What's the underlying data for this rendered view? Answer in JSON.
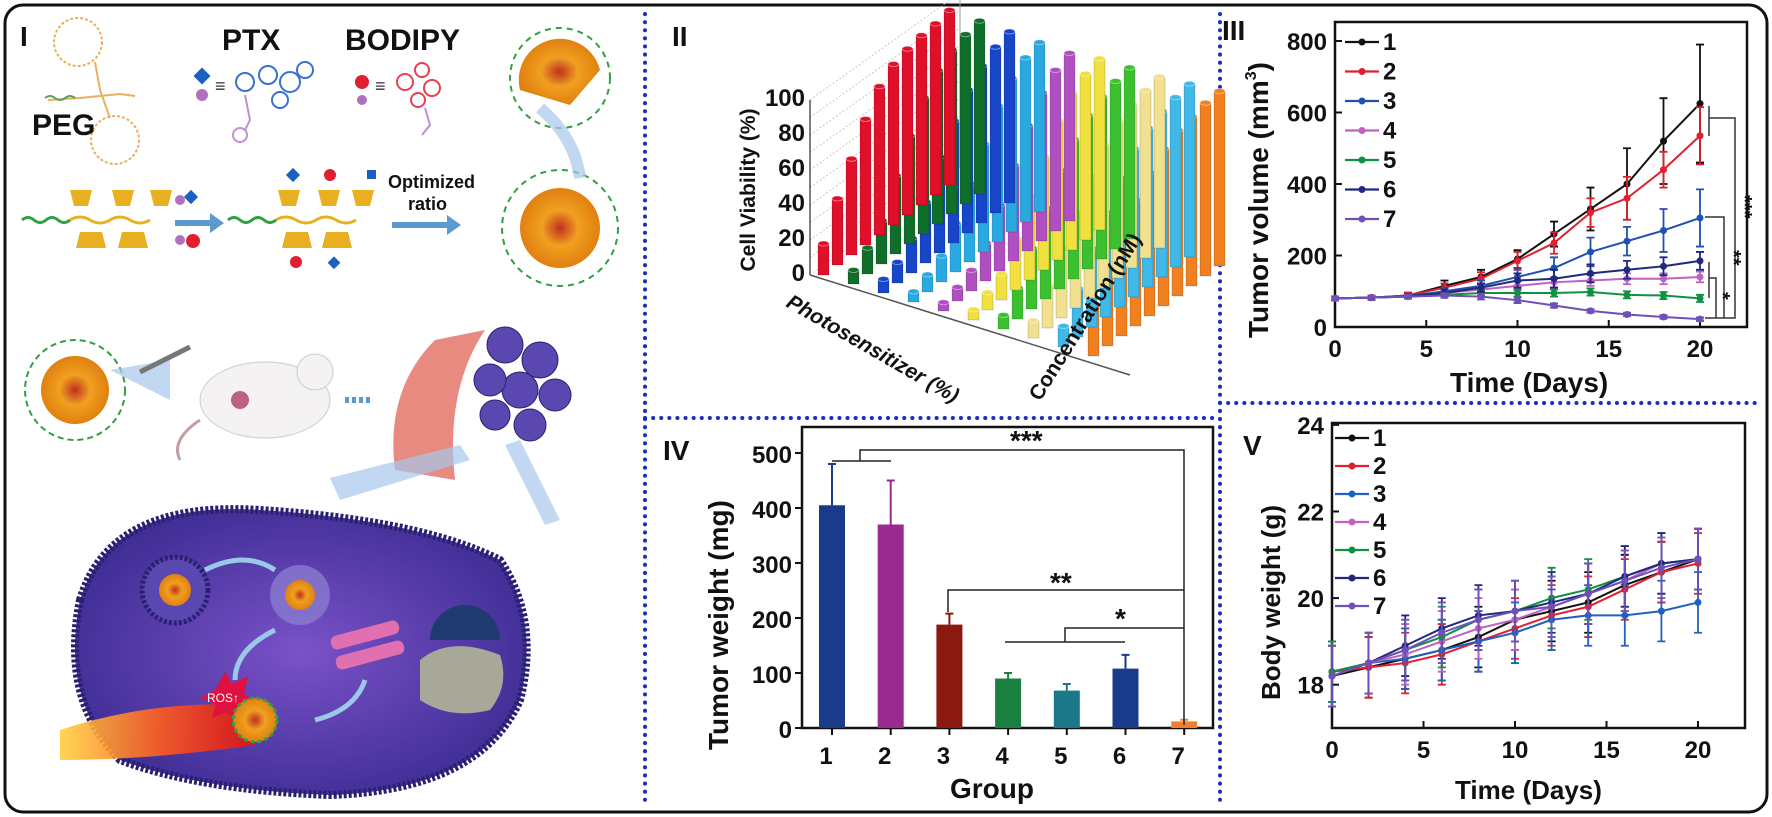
{
  "panels": {
    "p1": "I",
    "p2": "II",
    "p3": "III",
    "p4": "IV",
    "p5": "V"
  },
  "colors": {
    "separator": "#1a2fc0",
    "border": "#111111"
  },
  "illustration": {
    "peg": "PEG",
    "ptx": "PTX",
    "bodipy": "BODIPY",
    "equiv": "≡",
    "optimized_line1": "Optimized",
    "optimized_line2": "ratio",
    "ros": "ROS↑"
  },
  "chart_data": [
    {
      "id": "cell-viability",
      "type": "bar3d",
      "ylabel": "Cell Viability (%)",
      "xlabel": "Photosensitizer (%)",
      "zlabel": "Concentration (nM)",
      "ylim": [
        0,
        100
      ],
      "yticks": [
        "0",
        "20",
        "40",
        "60",
        "80",
        "100"
      ],
      "series_colors": [
        "#e0102a",
        "#0f6e2a",
        "#1846c8",
        "#2aa8e0",
        "#b050c0",
        "#f0e040",
        "#3cc030",
        "#f0e090",
        "#40b8e8",
        "#f08020"
      ],
      "values": [
        [
          18,
          38,
          55,
          72,
          85,
          92,
          95,
          97,
          98,
          100
        ],
        [
          8,
          15,
          25,
          45,
          62,
          78,
          88,
          94,
          97,
          99
        ],
        [
          8,
          12,
          20,
          35,
          55,
          70,
          82,
          90,
          95,
          98
        ],
        [
          6,
          10,
          15,
          28,
          45,
          62,
          78,
          88,
          94,
          97
        ],
        [
          5,
          8,
          12,
          22,
          38,
          55,
          72,
          85,
          92,
          96
        ],
        [
          6,
          10,
          15,
          30,
          48,
          65,
          80,
          90,
          95,
          98
        ],
        [
          8,
          18,
          35,
          52,
          68,
          80,
          88,
          93,
          96,
          98
        ],
        [
          10,
          25,
          40,
          55,
          70,
          82,
          90,
          94,
          96,
          98
        ],
        [
          12,
          28,
          45,
          60,
          74,
          85,
          91,
          95,
          97,
          99
        ],
        [
          30,
          45,
          60,
          72,
          82,
          90,
          95,
          97,
          99,
          100
        ]
      ]
    },
    {
      "id": "tumor-volume",
      "type": "line",
      "xlabel": "Time (Days)",
      "ylabel": "Tumor volume (mm",
      "ylabel_sup": "3",
      "ylabel_end": ")",
      "xlim": [
        0,
        22
      ],
      "ylim": [
        0,
        840
      ],
      "xticks": [
        "0",
        "5",
        "10",
        "15",
        "20"
      ],
      "yticks": [
        "0",
        "200",
        "400",
        "600",
        "800"
      ],
      "legend": "top-left",
      "x": [
        0,
        2,
        4,
        6,
        8,
        10,
        12,
        14,
        16,
        18,
        20
      ],
      "series": [
        {
          "name": "1",
          "color": "#111111",
          "values": [
            80,
            82,
            88,
            115,
            140,
            190,
            260,
            330,
            400,
            520,
            625
          ],
          "error": [
            5,
            6,
            8,
            15,
            20,
            25,
            35,
            60,
            100,
            120,
            165
          ]
        },
        {
          "name": "2",
          "color": "#e02030",
          "values": [
            80,
            82,
            88,
            110,
            135,
            185,
            235,
            320,
            360,
            440,
            535
          ],
          "error": [
            5,
            6,
            8,
            12,
            18,
            25,
            30,
            40,
            60,
            50,
            80
          ]
        },
        {
          "name": "3",
          "color": "#2050b0",
          "values": [
            80,
            82,
            86,
            100,
            115,
            140,
            165,
            210,
            240,
            270,
            305
          ],
          "error": [
            5,
            5,
            6,
            10,
            15,
            25,
            30,
            40,
            40,
            60,
            80
          ]
        },
        {
          "name": "4",
          "color": "#c060c0",
          "values": [
            80,
            82,
            85,
            95,
            105,
            115,
            125,
            130,
            135,
            135,
            140
          ],
          "error": [
            5,
            5,
            6,
            8,
            10,
            12,
            14,
            15,
            15,
            15,
            15
          ]
        },
        {
          "name": "5",
          "color": "#109040",
          "values": [
            80,
            82,
            85,
            90,
            95,
            95,
            95,
            98,
            90,
            88,
            80
          ],
          "error": [
            5,
            5,
            5,
            8,
            8,
            10,
            10,
            10,
            10,
            10,
            10
          ]
        },
        {
          "name": "6",
          "color": "#202880",
          "values": [
            80,
            82,
            86,
            95,
            110,
            130,
            135,
            150,
            160,
            170,
            185
          ],
          "error": [
            5,
            5,
            6,
            10,
            12,
            20,
            25,
            25,
            25,
            25,
            25
          ]
        },
        {
          "name": "7",
          "color": "#7050b8",
          "values": [
            80,
            82,
            85,
            88,
            85,
            75,
            60,
            45,
            35,
            28,
            22
          ],
          "error": [
            5,
            5,
            5,
            6,
            8,
            8,
            6,
            5,
            5,
            5,
            5
          ]
        }
      ],
      "annotations": [
        "***",
        "**",
        "*"
      ]
    },
    {
      "id": "tumor-weight",
      "type": "bar",
      "xlabel": "Group",
      "ylabel": "Tumor weight (mg)",
      "ylim": [
        0,
        540
      ],
      "yticks": [
        "0",
        "100",
        "200",
        "300",
        "400",
        "500"
      ],
      "categories": [
        "1",
        "2",
        "3",
        "4",
        "5",
        "6",
        "7"
      ],
      "values": [
        405,
        370,
        188,
        90,
        68,
        108,
        12
      ],
      "error": [
        75,
        80,
        20,
        10,
        12,
        25,
        3
      ],
      "colors": [
        "#1a3a8a",
        "#9a2a90",
        "#8a1a10",
        "#1a8040",
        "#1a7888",
        "#1a3a8a",
        "#f08030"
      ],
      "annotations": [
        "***",
        "**",
        "*"
      ]
    },
    {
      "id": "body-weight",
      "type": "line",
      "xlabel": "Time (Days)",
      "ylabel": "Body weight (g)",
      "xlim": [
        0,
        22
      ],
      "ylim": [
        17,
        24
      ],
      "xticks": [
        "0",
        "5",
        "10",
        "15",
        "20"
      ],
      "yticks": [
        "18",
        "20",
        "22",
        "24"
      ],
      "legend": "top-left",
      "x": [
        0,
        2,
        4,
        6,
        8,
        10,
        12,
        14,
        16,
        18,
        20
      ],
      "series": [
        {
          "name": "1",
          "color": "#111111",
          "values": [
            18.2,
            18.4,
            18.6,
            18.8,
            19.1,
            19.5,
            19.7,
            19.9,
            20.3,
            20.6,
            20.9
          ]
        },
        {
          "name": "2",
          "color": "#e02030",
          "values": [
            18.3,
            18.4,
            18.5,
            18.7,
            19.0,
            19.3,
            19.6,
            19.8,
            20.2,
            20.6,
            20.8
          ]
        },
        {
          "name": "3",
          "color": "#2060c0",
          "values": [
            18.3,
            18.5,
            18.6,
            18.8,
            19.0,
            19.2,
            19.5,
            19.6,
            19.6,
            19.7,
            19.9
          ]
        },
        {
          "name": "4",
          "color": "#c060c0",
          "values": [
            18.2,
            18.5,
            18.7,
            19.0,
            19.3,
            19.5,
            19.8,
            20.1,
            20.4,
            20.8,
            20.9
          ]
        },
        {
          "name": "5",
          "color": "#109040",
          "values": [
            18.3,
            18.5,
            18.8,
            19.1,
            19.5,
            19.7,
            20.0,
            20.2,
            20.5,
            20.8,
            20.9
          ]
        },
        {
          "name": "6",
          "color": "#202880",
          "values": [
            18.2,
            18.5,
            18.9,
            19.3,
            19.6,
            19.7,
            19.9,
            20.1,
            20.5,
            20.8,
            20.9
          ]
        },
        {
          "name": "7",
          "color": "#7050b8",
          "values": [
            18.2,
            18.5,
            18.8,
            19.2,
            19.5,
            19.7,
            19.8,
            20.1,
            20.4,
            20.7,
            20.9
          ]
        }
      ],
      "error": 0.7
    }
  ]
}
